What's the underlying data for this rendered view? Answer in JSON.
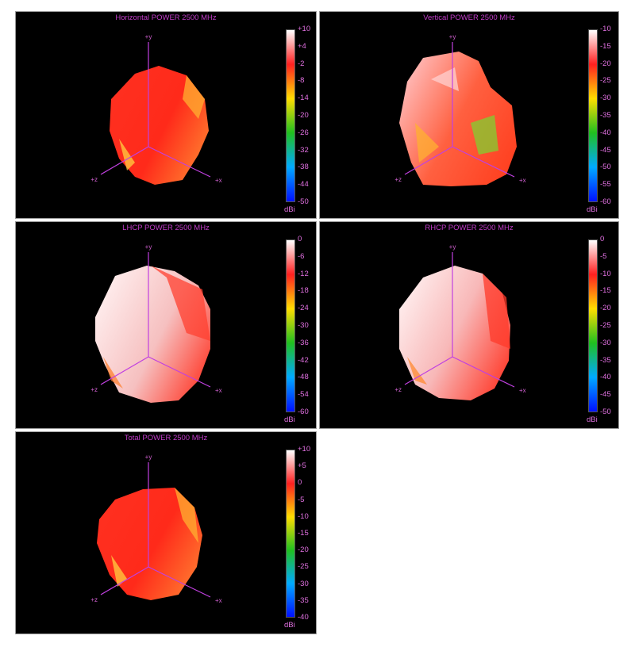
{
  "colors": {
    "background": "#000000",
    "title": "#c03cc8",
    "axis": "#c040e0",
    "tick_text": "#e070e0"
  },
  "colormap": [
    "#ffffff",
    "#ff2020",
    "#ffdd00",
    "#20c020",
    "#00aaff",
    "#0010ff"
  ],
  "chart_data": [
    {
      "type": "heatmap",
      "title": "Horizontal POWER 2500  MHz",
      "unit": "dBi",
      "colorbar_ticks": [
        "+10",
        "+4",
        "-2",
        "-8",
        "-14",
        "-20",
        "-26",
        "-32",
        "-38",
        "-44",
        "-50"
      ],
      "range": [
        -50,
        10
      ],
      "axes": [
        "+y",
        "+z",
        "+x"
      ]
    },
    {
      "type": "heatmap",
      "title": "Vertical POWER 2500  MHz",
      "unit": "dBi",
      "colorbar_ticks": [
        "-10",
        "-15",
        "-20",
        "-25",
        "-30",
        "-35",
        "-40",
        "-45",
        "-50",
        "-55",
        "-60"
      ],
      "range": [
        -60,
        -10
      ],
      "axes": [
        "+y",
        "+z",
        "+x"
      ]
    },
    {
      "type": "heatmap",
      "title": "LHCP POWER 2500  MHz",
      "unit": "dBi",
      "colorbar_ticks": [
        "0",
        "-6",
        "-12",
        "-18",
        "-24",
        "-30",
        "-36",
        "-42",
        "-48",
        "-54",
        "-60"
      ],
      "range": [
        -60,
        0
      ],
      "axes": [
        "+y",
        "+z",
        "+x"
      ]
    },
    {
      "type": "heatmap",
      "title": "RHCP POWER 2500  MHz",
      "unit": "dBi",
      "colorbar_ticks": [
        "0",
        "-5",
        "-10",
        "-15",
        "-20",
        "-25",
        "-30",
        "-35",
        "-40",
        "-45",
        "-50"
      ],
      "range": [
        -50,
        0
      ],
      "axes": [
        "+y",
        "+z",
        "+x"
      ]
    },
    {
      "type": "heatmap",
      "title": "Total POWER 2500  MHz",
      "unit": "dBi",
      "colorbar_ticks": [
        "+10",
        "+5",
        "0",
        "-5",
        "-10",
        "-15",
        "-20",
        "-25",
        "-30",
        "-35",
        "-40"
      ],
      "range": [
        -40,
        10
      ],
      "axes": [
        "+y",
        "+z",
        "+x"
      ]
    }
  ]
}
